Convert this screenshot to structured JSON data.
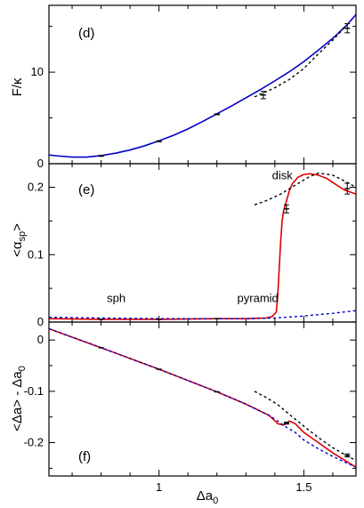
{
  "chart_data": {
    "type": "line",
    "xlabel": "Δa",
    "xlabel_sub": "0",
    "xlim": [
      0.62,
      1.68
    ],
    "xticks": [
      1,
      1.5
    ],
    "xtick_labels": [
      "1",
      "1.5"
    ],
    "colors": {
      "red": "#dd0000",
      "blue": "#0000cc",
      "black": "#000000"
    },
    "panels": [
      {
        "id": "d",
        "label": "(d)",
        "ylabel": "F/κ",
        "ylim": [
          0,
          17.3
        ],
        "yticks": [
          0,
          10
        ],
        "ytick_labels": [
          "0",
          "10"
        ],
        "series": [
          {
            "style": "solid-blue",
            "x": [
              0.62,
              0.65,
              0.7,
              0.75,
              0.8,
              0.85,
              0.9,
              0.95,
              1.0,
              1.05,
              1.1,
              1.15,
              1.2,
              1.25,
              1.3,
              1.35,
              1.4,
              1.45,
              1.5,
              1.55,
              1.6,
              1.65,
              1.68
            ],
            "y": [
              0.95,
              0.85,
              0.72,
              0.72,
              0.88,
              1.15,
              1.5,
              1.95,
              2.5,
              3.1,
              3.8,
              4.6,
              5.45,
              6.3,
              7.2,
              8.1,
              9.05,
              10.05,
              11.15,
              12.4,
              13.7,
              15.2,
              16.3
            ]
          },
          {
            "style": "dash-black",
            "x": [
              1.33,
              1.4,
              1.45,
              1.5,
              1.55,
              1.6,
              1.65
            ],
            "y": [
              7.3,
              8.3,
              9.2,
              10.4,
              12.0,
              13.5,
              15.2
            ]
          }
        ],
        "points": [
          {
            "x": 0.8,
            "y": 0.85,
            "err": 0.05
          },
          {
            "x": 1.0,
            "y": 2.45,
            "err": 0.05
          },
          {
            "x": 1.2,
            "y": 5.4,
            "err": 0.05
          },
          {
            "x": 1.36,
            "y": 7.5,
            "err": 0.4
          },
          {
            "x": 1.65,
            "y": 14.8,
            "err": 0.5
          }
        ],
        "annotations": []
      },
      {
        "id": "e",
        "label": "(e)",
        "ylabel": "<α",
        "ylabel_sub": "sp",
        "ylabel_end": ">",
        "ylim": [
          0,
          0.235
        ],
        "yticks": [
          0,
          0.1,
          0.2
        ],
        "ytick_labels": [
          "0",
          "0.1",
          "0.2"
        ],
        "series": [
          {
            "style": "solid-red",
            "x": [
              0.62,
              0.8,
              1.0,
              1.2,
              1.3,
              1.37,
              1.39,
              1.405,
              1.41,
              1.415,
              1.42,
              1.425,
              1.43,
              1.44,
              1.45,
              1.46,
              1.48,
              1.5,
              1.52,
              1.55,
              1.58,
              1.6,
              1.64,
              1.68
            ],
            "y": [
              0.005,
              0.004,
              0.004,
              0.005,
              0.005,
              0.006,
              0.008,
              0.015,
              0.04,
              0.08,
              0.12,
              0.15,
              0.165,
              0.18,
              0.195,
              0.205,
              0.215,
              0.219,
              0.22,
              0.218,
              0.213,
              0.207,
              0.196,
              0.19
            ]
          },
          {
            "style": "dash-blue",
            "x": [
              0.62,
              0.8,
              1.0,
              1.2,
              1.3,
              1.4,
              1.5,
              1.6,
              1.68
            ],
            "y": [
              0.007,
              0.006,
              0.005,
              0.005,
              0.005,
              0.006,
              0.009,
              0.013,
              0.017
            ]
          },
          {
            "style": "dash-black",
            "x": [
              1.33,
              1.37,
              1.42,
              1.47,
              1.52,
              1.55,
              1.6,
              1.65,
              1.68
            ],
            "y": [
              0.174,
              0.18,
              0.19,
              0.203,
              0.216,
              0.221,
              0.218,
              0.207,
              0.2
            ]
          }
        ],
        "points": [
          {
            "x": 0.8,
            "y": 0.004,
            "err": 0.0
          },
          {
            "x": 1.0,
            "y": 0.004,
            "err": 0.0
          },
          {
            "x": 1.2,
            "y": 0.005,
            "err": 0.0
          },
          {
            "x": 1.44,
            "y": 0.168,
            "err": 0.006
          },
          {
            "x": 1.65,
            "y": 0.198,
            "err": 0.008
          }
        ],
        "annotations": [
          {
            "text": "sph",
            "x": 0.82,
            "y": 0.03
          },
          {
            "text": "pyramid",
            "x": 1.27,
            "y": 0.03
          },
          {
            "text": "disk",
            "x": 1.39,
            "y": 0.212
          }
        ]
      },
      {
        "id": "f",
        "label": "(f)",
        "ylabel": "<Δa> - Δa",
        "ylabel_sub": "0",
        "ylim": [
          -0.265,
          0.035
        ],
        "yticks": [
          -0.2,
          -0.1,
          0
        ],
        "ytick_labels": [
          "-0.2",
          "-0.1",
          "0"
        ],
        "series": [
          {
            "style": "solid-red",
            "x": [
              0.62,
              0.8,
              1.0,
              1.2,
              1.3,
              1.38,
              1.41,
              1.43,
              1.45,
              1.47,
              1.5,
              1.55,
              1.6,
              1.68
            ],
            "y": [
              0.022,
              -0.015,
              -0.057,
              -0.101,
              -0.125,
              -0.147,
              -0.163,
              -0.166,
              -0.158,
              -0.163,
              -0.18,
              -0.2,
              -0.22,
              -0.248
            ]
          },
          {
            "style": "dash-blue",
            "x": [
              0.62,
              0.8,
              1.0,
              1.2,
              1.3,
              1.38,
              1.41,
              1.44,
              1.47,
              1.5,
              1.55,
              1.6,
              1.68
            ],
            "y": [
              0.022,
              -0.015,
              -0.057,
              -0.101,
              -0.125,
              -0.147,
              -0.158,
              -0.17,
              -0.18,
              -0.195,
              -0.212,
              -0.227,
              -0.248
            ]
          },
          {
            "style": "dash-black",
            "x": [
              1.33,
              1.37,
              1.41,
              1.45,
              1.5,
              1.55,
              1.6,
              1.65,
              1.68
            ],
            "y": [
              -0.1,
              -0.112,
              -0.126,
              -0.145,
              -0.168,
              -0.19,
              -0.21,
              -0.226,
              -0.235
            ]
          }
        ],
        "points": [
          {
            "x": 0.8,
            "y": -0.015,
            "err": 0.0
          },
          {
            "x": 1.0,
            "y": -0.057,
            "err": 0.0
          },
          {
            "x": 1.2,
            "y": -0.101,
            "err": 0.0
          },
          {
            "x": 1.44,
            "y": -0.162,
            "err": 0.002
          },
          {
            "x": 1.65,
            "y": -0.225,
            "err": 0.003
          }
        ],
        "annotations": []
      }
    ]
  }
}
